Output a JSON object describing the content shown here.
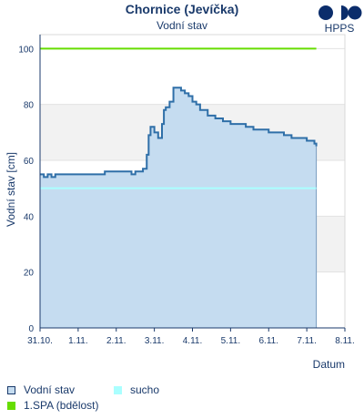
{
  "header": {
    "title": "Chornice (Jevíčka)",
    "subtitle": "Vodní stav",
    "logo_text": "HPPS"
  },
  "colors": {
    "series_line": "#2f6fa8",
    "series_fill": "#c5dcf0",
    "spa": "#66dd00",
    "sucho": "#aaffff",
    "band": "#f2f2f2",
    "text": "#1a3a6b"
  },
  "legend": {
    "vodni_stav": "Vodní stav",
    "sucho": "sucho",
    "spa": "1.SPA (bdělost)"
  },
  "chart_data": {
    "type": "area",
    "title": "Chornice (Jevíčka)",
    "subtitle": "Vodní stav",
    "xlabel": "Datum",
    "ylabel": "Vodní stav [cm]",
    "ylim": [
      0,
      105
    ],
    "yticks": [
      0,
      20,
      40,
      60,
      80,
      100
    ],
    "xticks": [
      "31.10.",
      "1.11.",
      "2.11.",
      "3.11.",
      "4.11.",
      "5.11.",
      "6.11.",
      "7.11.",
      "8.11."
    ],
    "bands": [
      [
        20,
        40
      ],
      [
        60,
        80
      ]
    ],
    "grid": true,
    "thresholds": [
      {
        "name": "1.SPA (bdělost)",
        "value": 100,
        "x_start": 0,
        "x_end": 7.25
      },
      {
        "name": "sucho",
        "value": 50,
        "x_start": 0,
        "x_end": 7.25
      }
    ],
    "series": [
      {
        "name": "Vodní stav",
        "x": [
          0,
          0.1,
          0.2,
          0.3,
          0.4,
          0.6,
          0.9,
          1.0,
          1.3,
          1.6,
          1.7,
          2.0,
          2.3,
          2.4,
          2.5,
          2.6,
          2.7,
          2.8,
          2.85,
          2.9,
          3.0,
          3.1,
          3.2,
          3.25,
          3.3,
          3.4,
          3.5,
          3.6,
          3.7,
          3.8,
          3.9,
          4.0,
          4.1,
          4.2,
          4.4,
          4.6,
          4.8,
          5.0,
          5.2,
          5.4,
          5.6,
          5.8,
          6.0,
          6.2,
          6.4,
          6.6,
          6.8,
          7.0,
          7.2,
          7.25
        ],
        "values": [
          55,
          54,
          55,
          54,
          55,
          55,
          55,
          55,
          55,
          55,
          56,
          56,
          56,
          55,
          56,
          56,
          57,
          62,
          69,
          72,
          70,
          68,
          73,
          78,
          79,
          81,
          86,
          86,
          85,
          84,
          83,
          81,
          80,
          78,
          76,
          75,
          74,
          73,
          73,
          72,
          71,
          71,
          70,
          70,
          69,
          68,
          68,
          67,
          66,
          65
        ]
      }
    ]
  }
}
